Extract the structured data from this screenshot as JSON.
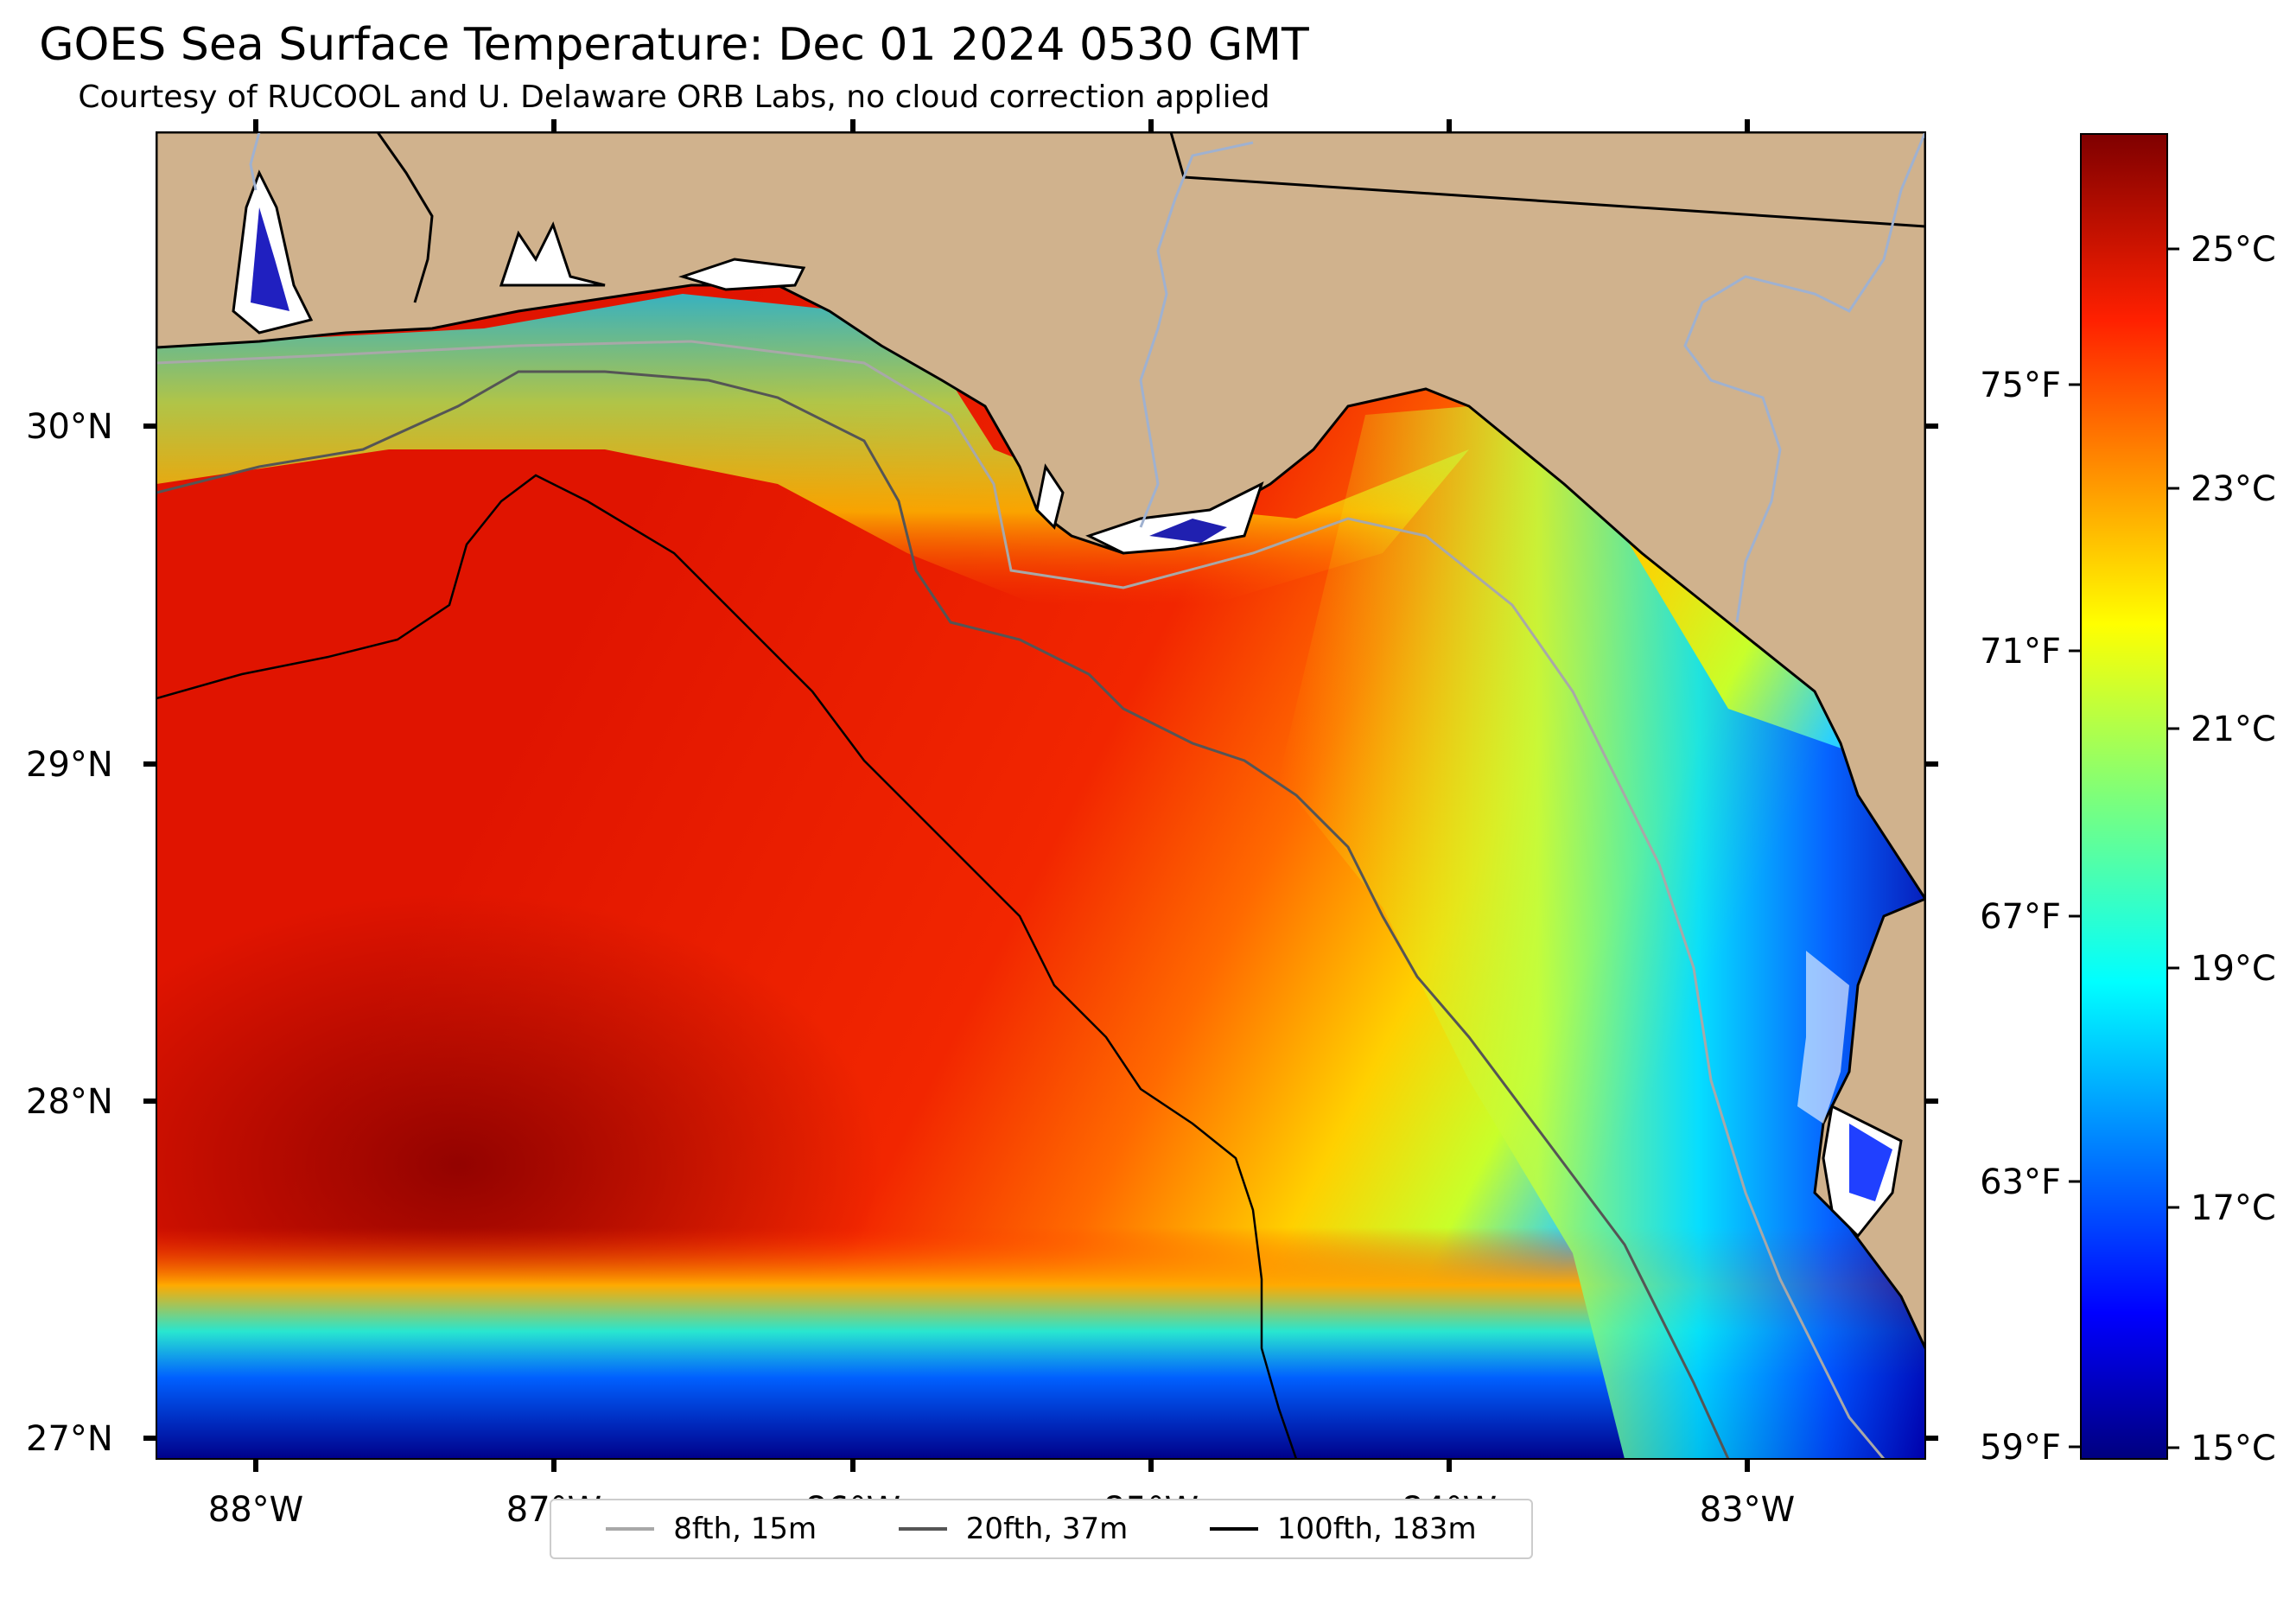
{
  "title": "GOES Sea Surface Temperature: Dec 01 2024 0530 GMT",
  "subtitle": "Courtesy of RUCOOL and U. Delaware ORB Labs, no cloud correction applied",
  "map": {
    "lat_ticks": [
      "30°N",
      "29°N",
      "28°N",
      "27°N"
    ],
    "lon_ticks": [
      "88°W",
      "87°W",
      "86°W",
      "85°W",
      "84°W",
      "83°W"
    ],
    "land_color": "#d0b28d",
    "coastline_color": "#000000",
    "river_color": "#9fb1d0"
  },
  "colorbar": {
    "fahrenheit_ticks": [
      "75°F",
      "71°F",
      "67°F",
      "63°F",
      "59°F"
    ],
    "celsius_ticks": [
      "25°C",
      "23°C",
      "21°C",
      "19°C",
      "17°C",
      "15°C"
    ],
    "colormap": "jet",
    "range_c": [
      14.9,
      26.2
    ]
  },
  "legend": {
    "items": [
      {
        "label": "8fth, 15m",
        "color": "#a8a8a8"
      },
      {
        "label": "20fth, 37m",
        "color": "#555555"
      },
      {
        "label": "100fth, 183m",
        "color": "#000000"
      }
    ]
  }
}
